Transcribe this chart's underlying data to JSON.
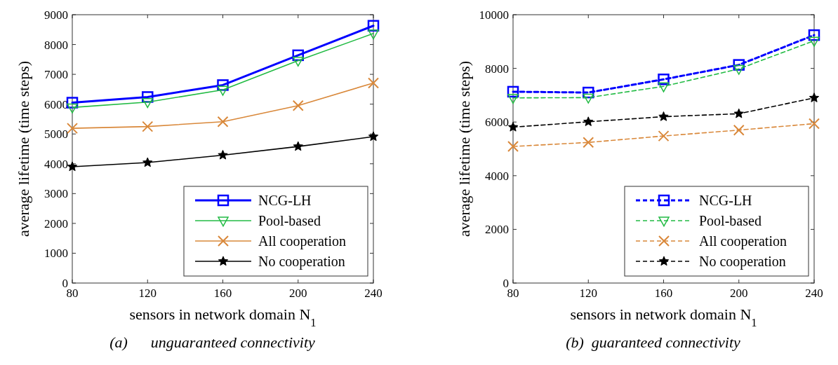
{
  "chart_data": [
    {
      "type": "line",
      "xlabel": "sensors in network domain N$_{1}$",
      "ylabel": "average lifetime (time steps)",
      "x": [
        80,
        120,
        160,
        200,
        240
      ],
      "xlim": [
        80,
        240
      ],
      "xticks": [
        80,
        120,
        160,
        200,
        240
      ],
      "ylim": [
        0,
        9000
      ],
      "yticks": [
        0,
        1000,
        2000,
        3000,
        4000,
        5000,
        6000,
        7000,
        8000,
        9000
      ],
      "grid": false,
      "legend": "bottom right",
      "line_style": "solid",
      "annotations": [
        "(a)      unguaranteed connectivity"
      ],
      "series": [
        {
          "name": "NCG-LH",
          "color": "#0000ff",
          "marker": "square",
          "values": [
            6050,
            6240,
            6640,
            7640,
            8630
          ]
        },
        {
          "name": "Pool-based",
          "color": "#22bb44",
          "marker": "triangle",
          "values": [
            5890,
            6070,
            6480,
            7460,
            8370
          ]
        },
        {
          "name": "All cooperation",
          "color": "#d9883a",
          "marker": "cross",
          "values": [
            5190,
            5250,
            5410,
            5950,
            6710
          ]
        },
        {
          "name": "No cooperation",
          "color": "#000000",
          "marker": "star",
          "values": [
            3900,
            4040,
            4290,
            4580,
            4910
          ]
        }
      ]
    },
    {
      "type": "line",
      "xlabel": "sensors in network domain N$_{1}$",
      "ylabel": "average lifetime (time steps)",
      "x": [
        80,
        120,
        160,
        200,
        240
      ],
      "xlim": [
        80,
        240
      ],
      "xticks": [
        80,
        120,
        160,
        200,
        240
      ],
      "ylim": [
        0,
        10000
      ],
      "yticks": [
        0,
        2000,
        4000,
        6000,
        8000,
        10000
      ],
      "grid": false,
      "legend": "bottom right",
      "line_style": "dashed",
      "annotations": [
        "(b)  guaranteed connectivity"
      ],
      "series": [
        {
          "name": "NCG-LH",
          "color": "#0000ff",
          "marker": "square",
          "values": [
            7130,
            7100,
            7590,
            8130,
            9240
          ]
        },
        {
          "name": "Pool-based",
          "color": "#22bb44",
          "marker": "triangle",
          "values": [
            6900,
            6910,
            7330,
            7980,
            9030
          ]
        },
        {
          "name": "All cooperation",
          "color": "#d9883a",
          "marker": "cross",
          "values": [
            5090,
            5240,
            5480,
            5700,
            5940
          ]
        },
        {
          "name": "No cooperation",
          "color": "#000000",
          "marker": "star",
          "values": [
            5810,
            6010,
            6200,
            6310,
            6900
          ]
        }
      ]
    }
  ]
}
